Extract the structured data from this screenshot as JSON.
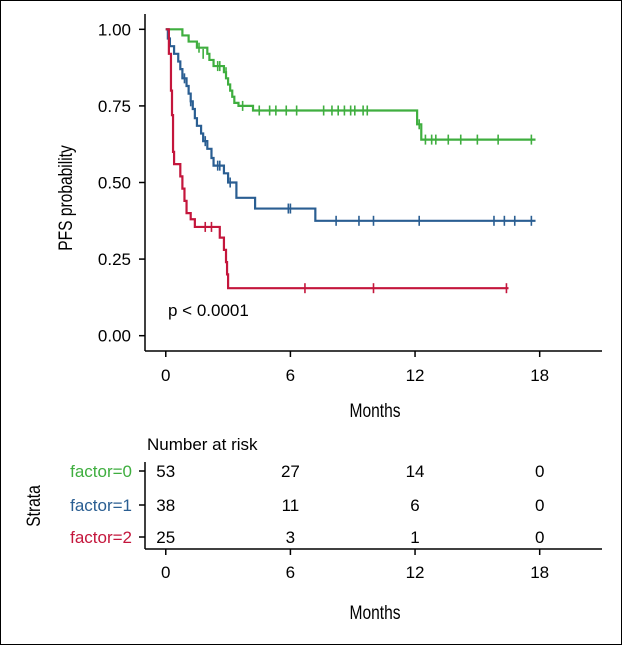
{
  "chart_data": [
    {
      "type": "line",
      "subtype": "kaplan-meier",
      "ylabel": "PFS probability",
      "xlabel": "Months",
      "xlim": [
        -1,
        21
      ],
      "ylim": [
        -0.05,
        1.05
      ],
      "xticks": [
        0,
        6,
        12,
        18
      ],
      "yticks": [
        0,
        0.25,
        0.5,
        0.75,
        1.0
      ],
      "ytick_labels": [
        "0.00",
        "0.25",
        "0.50",
        "0.75",
        "1.00"
      ],
      "annotation": "p < 0.0001",
      "series": [
        {
          "name": "factor=0",
          "color": "#3fae3f",
          "steps": [
            [
              0,
              1.0
            ],
            [
              0.8,
              0.98
            ],
            [
              1.1,
              0.96
            ],
            [
              1.5,
              0.94
            ],
            [
              2.0,
              0.92
            ],
            [
              2.1,
              0.9
            ],
            [
              2.3,
              0.88
            ],
            [
              2.8,
              0.86
            ],
            [
              2.9,
              0.84
            ],
            [
              3.0,
              0.82
            ],
            [
              3.1,
              0.8
            ],
            [
              3.2,
              0.78
            ],
            [
              3.3,
              0.76
            ],
            [
              3.5,
              0.75
            ],
            [
              4.2,
              0.735
            ],
            [
              12.1,
              0.69
            ],
            [
              12.3,
              0.64
            ],
            [
              17.8,
              0.64
            ]
          ],
          "censors": [
            [
              1.6,
              0.94
            ],
            [
              1.8,
              0.92
            ],
            [
              2.5,
              0.88
            ],
            [
              2.6,
              0.88
            ],
            [
              2.9,
              0.86
            ],
            [
              3.7,
              0.75
            ],
            [
              4.5,
              0.735
            ],
            [
              5.0,
              0.735
            ],
            [
              5.3,
              0.735
            ],
            [
              5.8,
              0.735
            ],
            [
              6.3,
              0.735
            ],
            [
              7.6,
              0.735
            ],
            [
              8.0,
              0.735
            ],
            [
              8.3,
              0.735
            ],
            [
              8.6,
              0.735
            ],
            [
              8.9,
              0.735
            ],
            [
              9.1,
              0.735
            ],
            [
              9.5,
              0.735
            ],
            [
              9.7,
              0.735
            ],
            [
              12.2,
              0.69
            ],
            [
              12.5,
              0.64
            ],
            [
              12.8,
              0.64
            ],
            [
              13.0,
              0.64
            ],
            [
              13.6,
              0.64
            ],
            [
              14.2,
              0.64
            ],
            [
              15.0,
              0.64
            ],
            [
              16.0,
              0.64
            ],
            [
              17.6,
              0.64
            ]
          ]
        },
        {
          "name": "factor=1",
          "color": "#2a5e92",
          "steps": [
            [
              0,
              1.0
            ],
            [
              0.1,
              0.97
            ],
            [
              0.2,
              0.945
            ],
            [
              0.4,
              0.92
            ],
            [
              0.6,
              0.895
            ],
            [
              0.7,
              0.87
            ],
            [
              0.8,
              0.84
            ],
            [
              1.0,
              0.815
            ],
            [
              1.1,
              0.79
            ],
            [
              1.2,
              0.765
            ],
            [
              1.3,
              0.74
            ],
            [
              1.4,
              0.71
            ],
            [
              1.5,
              0.685
            ],
            [
              1.7,
              0.66
            ],
            [
              1.8,
              0.635
            ],
            [
              2.0,
              0.61
            ],
            [
              2.2,
              0.58
            ],
            [
              2.3,
              0.555
            ],
            [
              2.8,
              0.53
            ],
            [
              3.0,
              0.5
            ],
            [
              3.4,
              0.45
            ],
            [
              4.3,
              0.415
            ],
            [
              7.2,
              0.375
            ],
            [
              17.8,
              0.375
            ]
          ],
          "censors": [
            [
              0.9,
              0.84
            ],
            [
              1.2,
              0.765
            ],
            [
              1.9,
              0.635
            ],
            [
              2.5,
              0.555
            ],
            [
              2.6,
              0.555
            ],
            [
              3.1,
              0.5
            ],
            [
              5.9,
              0.415
            ],
            [
              6.0,
              0.415
            ],
            [
              8.2,
              0.375
            ],
            [
              9.3,
              0.375
            ],
            [
              10.0,
              0.375
            ],
            [
              12.2,
              0.375
            ],
            [
              15.8,
              0.375
            ],
            [
              16.3,
              0.375
            ],
            [
              16.8,
              0.375
            ],
            [
              17.6,
              0.375
            ]
          ]
        },
        {
          "name": "factor=2",
          "color": "#c4163c",
          "steps": [
            [
              0,
              1.0
            ],
            [
              0.15,
              0.92
            ],
            [
              0.25,
              0.8
            ],
            [
              0.3,
              0.72
            ],
            [
              0.35,
              0.6
            ],
            [
              0.4,
              0.56
            ],
            [
              0.7,
              0.52
            ],
            [
              0.8,
              0.48
            ],
            [
              0.9,
              0.44
            ],
            [
              1.0,
              0.4
            ],
            [
              1.2,
              0.38
            ],
            [
              1.4,
              0.355
            ],
            [
              2.6,
              0.32
            ],
            [
              2.8,
              0.28
            ],
            [
              2.9,
              0.24
            ],
            [
              2.95,
              0.2
            ],
            [
              3.0,
              0.155
            ],
            [
              16.5,
              0.155
            ]
          ],
          "censors": [
            [
              1.9,
              0.355
            ],
            [
              2.2,
              0.355
            ],
            [
              6.7,
              0.155
            ],
            [
              10.0,
              0.155
            ],
            [
              16.4,
              0.155
            ]
          ]
        }
      ]
    },
    {
      "type": "table",
      "title": "Number at risk",
      "ylabel": "Strata",
      "xlabel": "Months",
      "xticks": [
        0,
        6,
        12,
        18
      ],
      "rows": [
        {
          "name": "factor=0",
          "color": "#3fae3f",
          "values": [
            "53",
            "27",
            "14",
            "0"
          ]
        },
        {
          "name": "factor=1",
          "color": "#2a5e92",
          "values": [
            "38",
            "11",
            "6",
            "0"
          ]
        },
        {
          "name": "factor=2",
          "color": "#c4163c",
          "values": [
            "25",
            "3",
            "1",
            "0"
          ]
        }
      ]
    }
  ]
}
